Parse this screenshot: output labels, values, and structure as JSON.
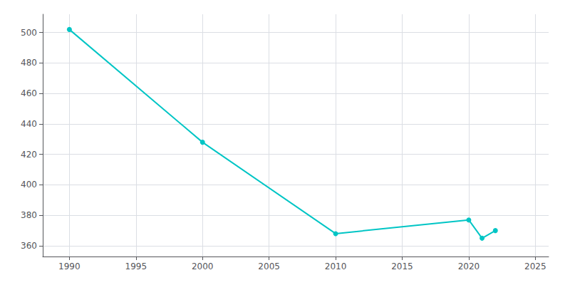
{
  "chart_data": {
    "type": "line",
    "x": [
      1990,
      2000,
      2010,
      2020,
      2021,
      2022
    ],
    "values": [
      502,
      428,
      368,
      377,
      365,
      370
    ],
    "color": "#00C5C5",
    "marker": "circle",
    "xlim": [
      1988,
      2026
    ],
    "ylim": [
      353,
      512
    ],
    "xticks": [
      1990,
      1995,
      2000,
      2005,
      2010,
      2015,
      2020,
      2025
    ],
    "yticks": [
      360,
      380,
      400,
      420,
      440,
      460,
      480,
      500
    ],
    "grid": true
  }
}
